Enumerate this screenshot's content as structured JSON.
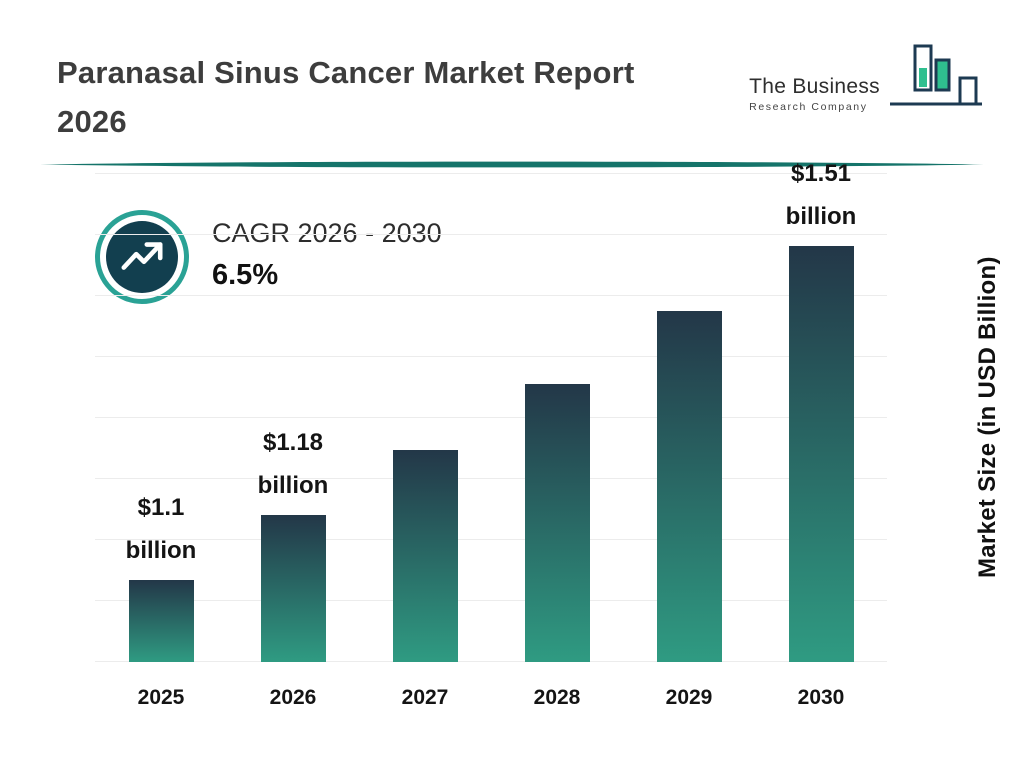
{
  "header": {
    "title": {
      "line1": "Paranasal Sinus Cancer Market Report",
      "line2": "2026"
    },
    "logo": {
      "name": "The Business",
      "subname": "Research Company"
    }
  },
  "cagr": {
    "label": "CAGR 2026 - 2030",
    "value": "6.5%"
  },
  "chart_data": {
    "type": "bar",
    "title": "Paranasal Sinus Cancer Market Report 2026",
    "categories": [
      "2025",
      "2026",
      "2027",
      "2028",
      "2029",
      "2030"
    ],
    "values": [
      1.1,
      1.18,
      1.26,
      1.34,
      1.43,
      1.51
    ],
    "value_labels": [
      {
        "amount": "$1.1",
        "unit": "billion"
      },
      {
        "amount": "$1.18",
        "unit": "billion"
      },
      null,
      null,
      null,
      {
        "amount": "$1.51",
        "unit": "billion"
      }
    ],
    "xlabel": "",
    "ylabel": "Market Size (in USD Billion)",
    "ylim": [
      1.0,
      1.6
    ],
    "grid": true,
    "cagr_label": "CAGR 2026 - 2030",
    "cagr_value": "6.5%",
    "colors": {
      "bar_gradient_top": "#233748",
      "bar_gradient_bottom": "#2f9b82",
      "accent_teal": "#2aa295",
      "icon_circle": "#123f4f",
      "divider": "#15746a"
    }
  }
}
